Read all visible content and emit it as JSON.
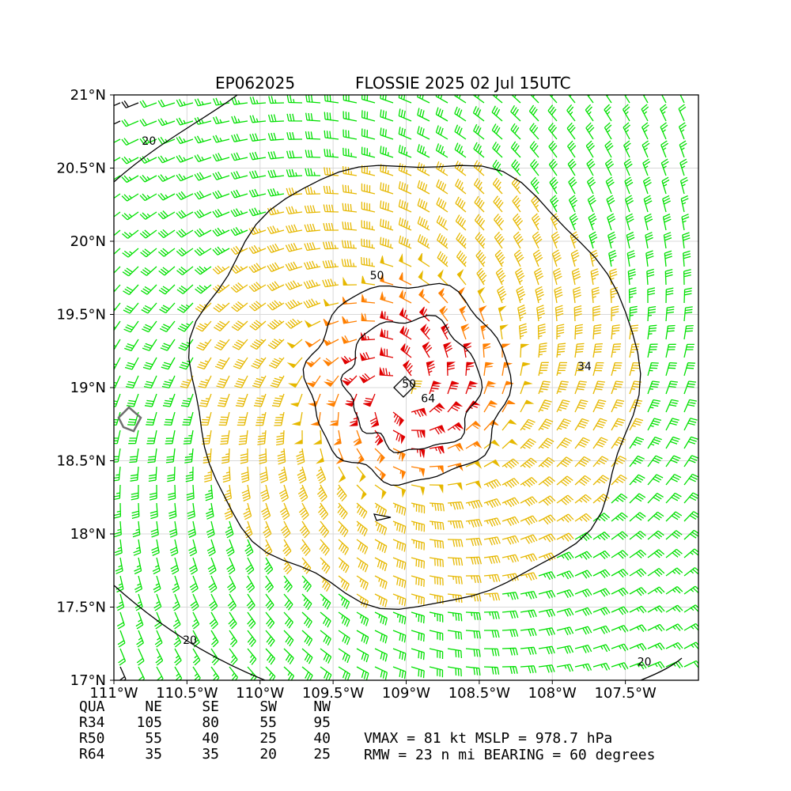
{
  "chart_data": {
    "type": "wind_barb_map",
    "title_left": "EP062025",
    "title_right": "FLOSSIE 2025 02 Jul 15UTC",
    "x_ticks": [
      {
        "value": -111.0,
        "label": "111°W"
      },
      {
        "value": -110.5,
        "label": "110.5°W"
      },
      {
        "value": -110.0,
        "label": "110°W"
      },
      {
        "value": -109.5,
        "label": "109.5°W"
      },
      {
        "value": -109.0,
        "label": "109°W"
      },
      {
        "value": -108.5,
        "label": "108.5°W"
      },
      {
        "value": -108.0,
        "label": "108°W"
      },
      {
        "value": -107.5,
        "label": "107.5°W"
      }
    ],
    "y_ticks": [
      {
        "value": 17.0,
        "label": "17°N"
      },
      {
        "value": 17.5,
        "label": "17.5°N"
      },
      {
        "value": 18.0,
        "label": "18°N"
      },
      {
        "value": 18.5,
        "label": "18.5°N"
      },
      {
        "value": 19.0,
        "label": "19°N"
      },
      {
        "value": 19.5,
        "label": "19.5°N"
      },
      {
        "value": 20.0,
        "label": "20°N"
      },
      {
        "value": 20.5,
        "label": "20.5°N"
      },
      {
        "value": 21.0,
        "label": "21°N"
      }
    ],
    "xlim": [
      -111.0,
      -107.0
    ],
    "ylim": [
      17.0,
      21.0
    ],
    "grid": true,
    "storm_center": {
      "lon": -109.05,
      "lat": 18.95
    },
    "contour_levels": [
      20,
      34,
      50,
      64
    ],
    "contour_labels": [
      {
        "text": "20",
        "lon": -110.76,
        "lat": 20.66
      },
      {
        "text": "20",
        "lon": -110.48,
        "lat": 17.25
      },
      {
        "text": "20",
        "lon": -107.37,
        "lat": 17.1
      },
      {
        "text": "34",
        "lon": -107.78,
        "lat": 19.12
      },
      {
        "text": "50",
        "lon": -109.2,
        "lat": 19.74
      },
      {
        "text": "50",
        "lon": -108.98,
        "lat": 19.0
      },
      {
        "text": "64",
        "lon": -108.85,
        "lat": 18.9
      }
    ],
    "colors": {
      "below_34": "#00e000",
      "r34": "#e6b800",
      "r50": "#ff7f00",
      "r64": "#e00000",
      "weak": "#000000",
      "contour": "#000000",
      "grid": "#d8d8d8",
      "island": "#707070"
    },
    "radii_table": {
      "headers": [
        "QUA",
        "NE",
        "SE",
        "SW",
        "NW"
      ],
      "rows": [
        {
          "label": "R34",
          "values": [
            "105",
            "80",
            "55",
            "95"
          ]
        },
        {
          "label": "R50",
          "values": [
            "55",
            "40",
            "25",
            "40"
          ]
        },
        {
          "label": "R64",
          "values": [
            "35",
            "35",
            "20",
            "25"
          ]
        }
      ]
    },
    "summary": {
      "line1": "VMAX =  81 kt MSLP = 978.7 hPa",
      "line2": "RMW =  23 n mi BEARING =  60 degrees"
    }
  }
}
